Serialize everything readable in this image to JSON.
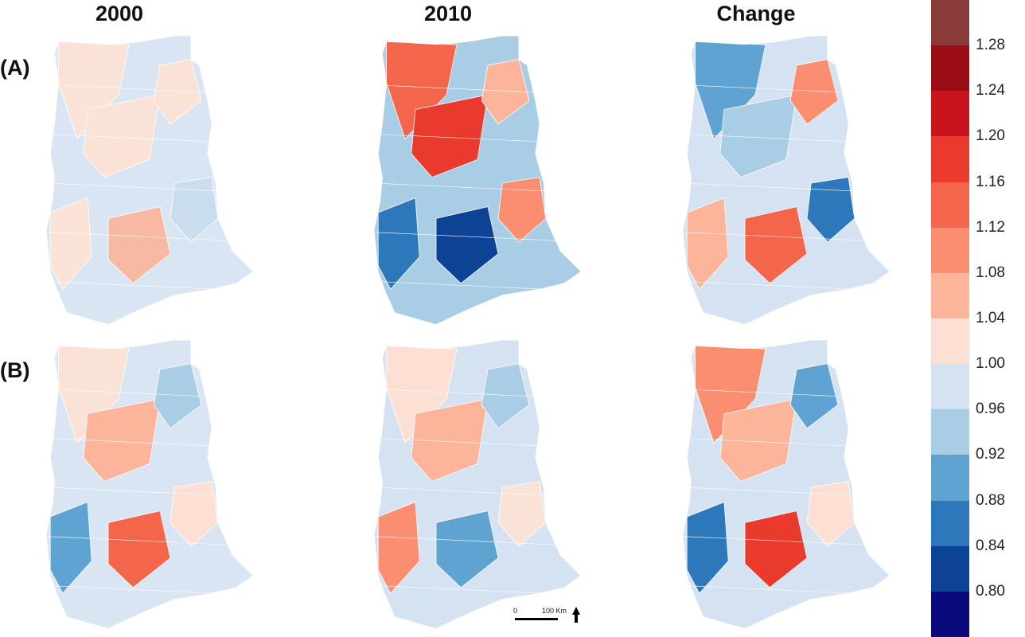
{
  "columns": [
    "2000",
    "2010",
    "Change"
  ],
  "rows": [
    "(A)",
    "(B)"
  ],
  "legend": {
    "ticks": [
      "1.28",
      "1.24",
      "1.20",
      "1.16",
      "1.12",
      "1.08",
      "1.04",
      "1.00",
      "0.96",
      "0.92",
      "0.88",
      "0.84",
      "0.80"
    ],
    "colors": [
      "#8b3a3a",
      "#9b0d14",
      "#c9141d",
      "#ea3a2e",
      "#f4664b",
      "#fb8e70",
      "#fcb59b",
      "#fde0d3",
      "#d4e2f1",
      "#a9cde4",
      "#5fa3d2",
      "#2c78bb",
      "#0c4394",
      "#0a0a7e"
    ]
  },
  "scalebar": {
    "zero": "0",
    "distance": "100 Km"
  },
  "panels": [
    {
      "row": "A",
      "col": "2000",
      "base": "#d9e5f2",
      "patches": [
        "#fbe2d6",
        "#fbe2d6",
        "#fbe2d6",
        "#fbe2d6",
        "#f7b9a1",
        "#c9ddee"
      ]
    },
    {
      "row": "A",
      "col": "2010",
      "base": "#a9cde4",
      "patches": [
        "#f4664b",
        "#ea3a2e",
        "#fcb59b",
        "#2c78bb",
        "#0c4394",
        "#fb8e70"
      ]
    },
    {
      "row": "A",
      "col": "Change",
      "base": "#d4e2f1",
      "patches": [
        "#5fa3d2",
        "#a9cde4",
        "#fb8e70",
        "#fcb59b",
        "#f4664b",
        "#2c78bb"
      ]
    },
    {
      "row": "B",
      "col": "2000",
      "base": "#d9e5f2",
      "patches": [
        "#fbe2d6",
        "#fcb59b",
        "#a9cde4",
        "#5fa3d2",
        "#f4664b",
        "#fde0d3"
      ]
    },
    {
      "row": "B",
      "col": "2010",
      "base": "#d4e2f1",
      "patches": [
        "#fde0d3",
        "#fcb59b",
        "#a9cde4",
        "#fb8e70",
        "#5fa3d2",
        "#fbe2d6"
      ]
    },
    {
      "row": "B",
      "col": "Change",
      "base": "#d4e2f1",
      "patches": [
        "#fb8e70",
        "#fcb59b",
        "#5fa3d2",
        "#2c78bb",
        "#ea3a2e",
        "#fde0d3"
      ]
    }
  ]
}
